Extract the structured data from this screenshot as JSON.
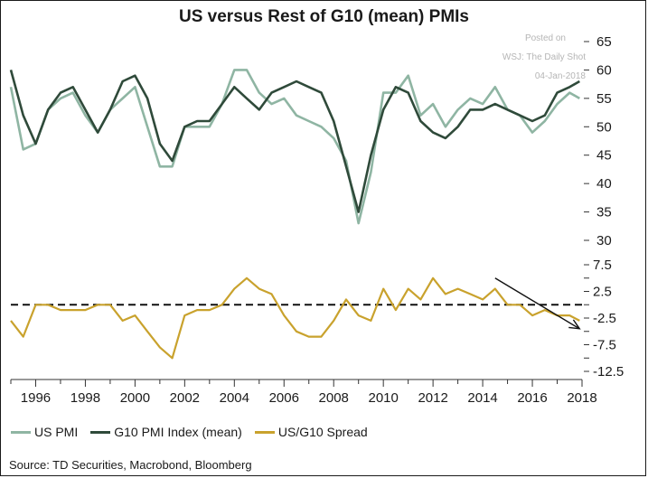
{
  "title": "US versus Rest of G10 (mean) PMIs",
  "watermark": {
    "line1": "Posted on",
    "line2": "WSJ: The Daily Shot",
    "line3": "04-Jan-2018"
  },
  "source": "Source: TD Securities, Macrobond, Bloomberg",
  "colors": {
    "us": "#8fb5a3",
    "g10": "#2f4a3a",
    "spread": "#c9a22d",
    "zero_line": "#111111",
    "trend_arrow": "#111111"
  },
  "chart_data": [
    {
      "type": "line",
      "title": "US versus Rest of G10 (mean) PMIs",
      "y_axis_position": "right",
      "ylim": [
        30,
        65
      ],
      "yticks": [
        30,
        35,
        40,
        45,
        50,
        55,
        60,
        65
      ],
      "x": [
        1995.0,
        1995.5,
        1996.0,
        1996.5,
        1997.0,
        1997.5,
        1998.0,
        1998.5,
        1999.0,
        1999.5,
        2000.0,
        2000.5,
        2001.0,
        2001.5,
        2002.0,
        2002.5,
        2003.0,
        2003.5,
        2004.0,
        2004.5,
        2005.0,
        2005.5,
        2006.0,
        2006.5,
        2007.0,
        2007.5,
        2008.0,
        2008.5,
        2009.0,
        2009.5,
        2010.0,
        2010.5,
        2011.0,
        2011.5,
        2012.0,
        2012.5,
        2013.0,
        2013.5,
        2014.0,
        2014.5,
        2015.0,
        2015.5,
        2016.0,
        2016.5,
        2017.0,
        2017.5,
        2017.9
      ],
      "series": [
        {
          "name": "US PMI",
          "values": [
            57,
            46,
            47,
            53,
            55,
            56,
            52,
            49,
            53,
            55,
            57,
            50,
            43,
            43,
            50,
            50,
            50,
            54,
            60,
            60,
            56,
            54,
            55,
            52,
            51,
            50,
            48,
            44,
            33,
            42,
            56,
            56,
            59,
            52,
            54,
            50,
            53,
            55,
            54,
            57,
            53,
            52,
            49,
            51,
            54,
            56,
            55
          ]
        },
        {
          "name": "G10 PMI Index (mean)",
          "values": [
            60,
            52,
            47,
            53,
            56,
            57,
            53,
            49,
            53,
            58,
            59,
            55,
            47,
            44,
            50,
            51,
            51,
            54,
            57,
            55,
            53,
            56,
            57,
            58,
            57,
            56,
            51,
            43,
            35,
            45,
            53,
            57,
            56,
            51,
            49,
            48,
            50,
            53,
            53,
            54,
            53,
            52,
            51,
            52,
            56,
            57,
            58
          ]
        }
      ],
      "xticks": [
        "1996",
        "1998",
        "2000",
        "2002",
        "2004",
        "2006",
        "2008",
        "2010",
        "2012",
        "2014",
        "2016",
        "2018"
      ]
    },
    {
      "type": "line",
      "y_axis_position": "right",
      "ylim": [
        -12.5,
        7.5
      ],
      "yticks": [
        -12.5,
        -7.5,
        -2.5,
        2.5,
        7.5
      ],
      "reference_line": 0,
      "x": [
        1995.0,
        1995.5,
        1996.0,
        1996.5,
        1997.0,
        1997.5,
        1998.0,
        1998.5,
        1999.0,
        1999.5,
        2000.0,
        2000.5,
        2001.0,
        2001.5,
        2002.0,
        2002.5,
        2003.0,
        2003.5,
        2004.0,
        2004.5,
        2005.0,
        2005.5,
        2006.0,
        2006.5,
        2007.0,
        2007.5,
        2008.0,
        2008.5,
        2009.0,
        2009.5,
        2010.0,
        2010.5,
        2011.0,
        2011.5,
        2012.0,
        2012.5,
        2013.0,
        2013.5,
        2014.0,
        2014.5,
        2015.0,
        2015.5,
        2016.0,
        2016.5,
        2017.0,
        2017.5,
        2017.9
      ],
      "series": [
        {
          "name": "US/G10 Spread",
          "values": [
            -3,
            -6,
            0,
            0,
            -1,
            -1,
            -1,
            0,
            0,
            -3,
            -2,
            -5,
            -8,
            -10,
            -2,
            -1,
            -1,
            0,
            3,
            5,
            3,
            2,
            -2,
            -5,
            -6,
            -6,
            -3,
            1,
            -2,
            -3,
            3,
            -1,
            3,
            1,
            5,
            2,
            3,
            2,
            1,
            3,
            0,
            0,
            -2,
            -1,
            -2,
            -2,
            -3
          ]
        }
      ],
      "annotation": {
        "type": "trend-arrow",
        "from": [
          2014.5,
          5
        ],
        "to": [
          2017.9,
          -4.5
        ]
      }
    }
  ],
  "legend": [
    {
      "name": "US PMI"
    },
    {
      "name": "G10 PMI Index (mean)"
    },
    {
      "name": "US/G10 Spread"
    }
  ]
}
